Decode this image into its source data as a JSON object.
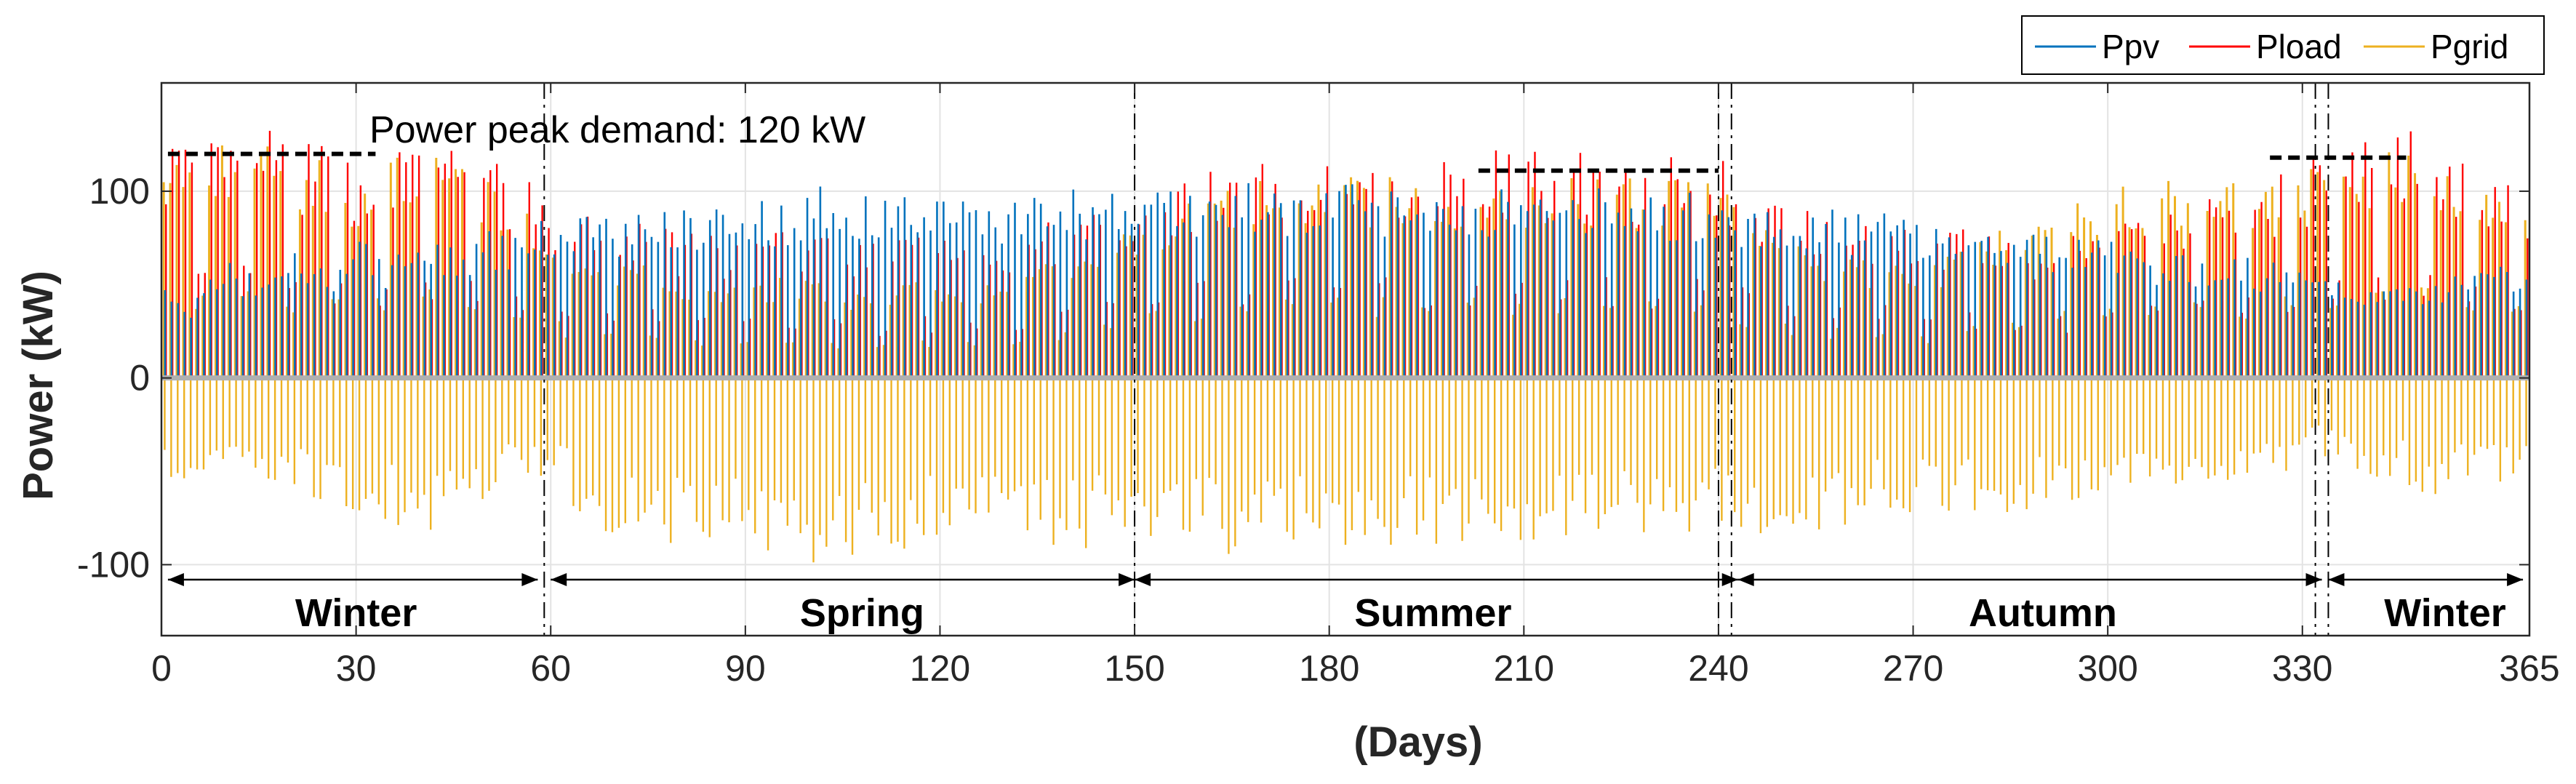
{
  "chart_data": {
    "type": "line",
    "title": "",
    "xlabel": "(Days)",
    "ylabel": "Power (kW)",
    "xlim": [
      0,
      365
    ],
    "ylim": [
      -138,
      158
    ],
    "xticks": [
      0,
      30,
      60,
      90,
      120,
      150,
      180,
      210,
      240,
      270,
      300,
      330,
      365
    ],
    "xtick_labels": [
      "0",
      "30",
      "60",
      "90",
      "120",
      "150",
      "180",
      "210",
      "240",
      "270",
      "300",
      "330",
      "365"
    ],
    "yticks": [
      -100,
      0,
      100
    ],
    "ytick_labels": [
      "-100",
      "0",
      "100"
    ],
    "grid": true,
    "legend": {
      "placement": "top-right-outside",
      "entries": [
        {
          "name": "Ppv",
          "color": "#0072BD"
        },
        {
          "name": "Pload",
          "color": "#FF0000"
        },
        {
          "name": "Pgrid",
          "color": "#EDB120"
        }
      ]
    },
    "series_style": {
      "Ppv": {
        "color": "#0072BD"
      },
      "Pload": {
        "color": "#FF0000"
      },
      "Pgrid": {
        "color": "#EDB120"
      }
    },
    "daily_profile_note": "Daily peak values (kW) sampled every 5 days; one daily pulse per day in the original hourly series.",
    "daily_samples": {
      "day": [
        0,
        5,
        10,
        15,
        20,
        25,
        30,
        35,
        40,
        45,
        50,
        55,
        60,
        65,
        70,
        75,
        80,
        85,
        90,
        95,
        100,
        105,
        110,
        115,
        120,
        125,
        130,
        135,
        140,
        145,
        150,
        155,
        160,
        165,
        170,
        175,
        180,
        185,
        190,
        195,
        200,
        205,
        210,
        215,
        220,
        225,
        230,
        235,
        240,
        245,
        250,
        255,
        260,
        265,
        270,
        275,
        280,
        285,
        290,
        295,
        300,
        305,
        310,
        315,
        320,
        325,
        330,
        335,
        340,
        345,
        350,
        355,
        360,
        365
      ],
      "Ppv": [
        45,
        40,
        60,
        50,
        65,
        55,
        70,
        60,
        72,
        65,
        75,
        70,
        82,
        85,
        80,
        88,
        85,
        90,
        92,
        88,
        95,
        98,
        90,
        95,
        92,
        94,
        90,
        93,
        95,
        92,
        95,
        97,
        94,
        98,
        96,
        97,
        95,
        98,
        96,
        97,
        94,
        96,
        95,
        94,
        96,
        92,
        94,
        93,
        90,
        88,
        85,
        86,
        83,
        84,
        82,
        80,
        78,
        75,
        72,
        70,
        68,
        65,
        62,
        60,
        62,
        58,
        55,
        50,
        48,
        45,
        50,
        55,
        60,
        50
      ],
      "Pload": [
        125,
        115,
        120,
        130,
        110,
        118,
        105,
        115,
        112,
        120,
        108,
        100,
        85,
        80,
        75,
        78,
        72,
        70,
        68,
        72,
        75,
        70,
        65,
        72,
        70,
        68,
        72,
        75,
        80,
        85,
        95,
        100,
        105,
        108,
        110,
        112,
        115,
        110,
        112,
        108,
        110,
        112,
        110,
        115,
        112,
        110,
        108,
        112,
        110,
        95,
        90,
        88,
        85,
        80,
        78,
        75,
        70,
        68,
        65,
        70,
        75,
        80,
        85,
        90,
        95,
        100,
        105,
        120,
        115,
        122,
        118,
        110,
        105,
        95
      ],
      "Pgrid_max": [
        120,
        110,
        118,
        125,
        105,
        112,
        100,
        110,
        108,
        115,
        100,
        95,
        75,
        60,
        55,
        58,
        50,
        48,
        45,
        50,
        52,
        48,
        40,
        50,
        48,
        45,
        50,
        55,
        60,
        65,
        80,
        85,
        90,
        95,
        98,
        100,
        105,
        100,
        102,
        98,
        100,
        102,
        100,
        105,
        102,
        100,
        98,
        102,
        100,
        80,
        70,
        65,
        62,
        58,
        55,
        60,
        70,
        80,
        85,
        90,
        95,
        100,
        100,
        95,
        98,
        100,
        102,
        118,
        110,
        115,
        112,
        105,
        100,
        95
      ],
      "Pgrid_min": [
        -55,
        -60,
        -50,
        -62,
        -58,
        -65,
        -70,
        -75,
        -80,
        -72,
        -68,
        -55,
        -50,
        -75,
        -80,
        -85,
        -88,
        -90,
        -85,
        -92,
        -95,
        -100,
        -90,
        -88,
        -85,
        -82,
        -80,
        -88,
        -90,
        -85,
        -80,
        -85,
        -88,
        -90,
        -92,
        -88,
        -85,
        -90,
        -88,
        -86,
        -85,
        -88,
        -90,
        -86,
        -84,
        -82,
        -85,
        -80,
        -78,
        -82,
        -80,
        -78,
        -75,
        -72,
        -70,
        -68,
        -72,
        -75,
        -70,
        -65,
        -60,
        -62,
        -58,
        -55,
        -52,
        -50,
        -45,
        -40,
        -50,
        -55,
        -60,
        -58,
        -55,
        -50
      ]
    },
    "annotations": {
      "peak_text": "Power peak demand: 120 kW",
      "peak_lines": [
        {
          "x0": 1,
          "x1": 33,
          "y": 120
        },
        {
          "x0": 203,
          "x1": 240,
          "y": 111
        },
        {
          "x0": 325,
          "x1": 346,
          "y": 118
        }
      ],
      "season_boundaries": [
        59,
        150,
        240,
        242,
        332,
        334
      ],
      "season_arrows_y": -108,
      "seasons": [
        {
          "label": "Winter",
          "x0": 1,
          "x1": 58,
          "label_x": 30
        },
        {
          "label": "Spring",
          "x0": 60,
          "x1": 150,
          "label_x": 108
        },
        {
          "label": "Summer",
          "x0": 150,
          "x1": 243,
          "label_x": 196
        },
        {
          "label": "Autumn",
          "x0": 243,
          "x1": 333,
          "label_x": 290
        },
        {
          "label": "Winter",
          "x0": 334,
          "x1": 364,
          "label_x": 352
        }
      ]
    }
  }
}
